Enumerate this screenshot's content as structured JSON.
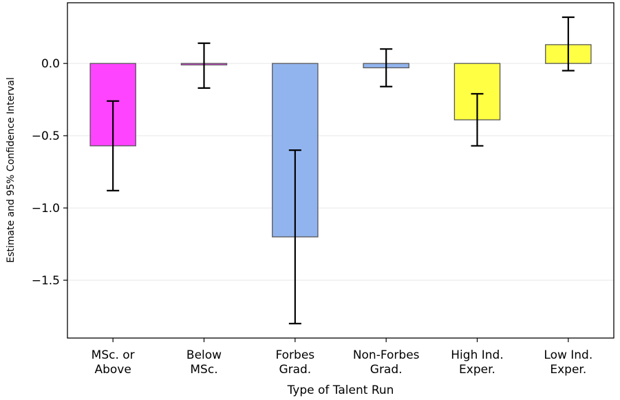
{
  "chart_data": {
    "type": "bar",
    "xlabel": "Type of Talent Run",
    "ylabel": "Estimate and 95% Confidence Interval",
    "ylim": [
      -1.9,
      0.42
    ],
    "yticks": [
      0.0,
      -0.5,
      -1.0,
      -1.5
    ],
    "ytick_labels": [
      "0.0",
      "−0.5",
      "−1.0",
      "−1.5"
    ],
    "grid": "horizontal",
    "categories": [
      [
        "MSc. or",
        "Above"
      ],
      [
        "Below",
        "MSc."
      ],
      [
        "Forbes",
        "Grad."
      ],
      [
        "Non-Forbes",
        "Grad."
      ],
      [
        "High Ind.",
        "Exper."
      ],
      [
        "Low Ind.",
        "Exper."
      ]
    ],
    "values": [
      -0.57,
      -0.01,
      -1.2,
      -0.03,
      -0.39,
      0.13
    ],
    "ci_lower": [
      -0.88,
      -0.17,
      -1.8,
      -0.16,
      -0.57,
      -0.05
    ],
    "ci_upper": [
      -0.26,
      0.14,
      -0.6,
      0.1,
      -0.21,
      0.32
    ],
    "colors": [
      "#ff44ff",
      "#ff44ff",
      "#92b4ee",
      "#92b4ee",
      "#ffff44",
      "#ffff44"
    ]
  }
}
